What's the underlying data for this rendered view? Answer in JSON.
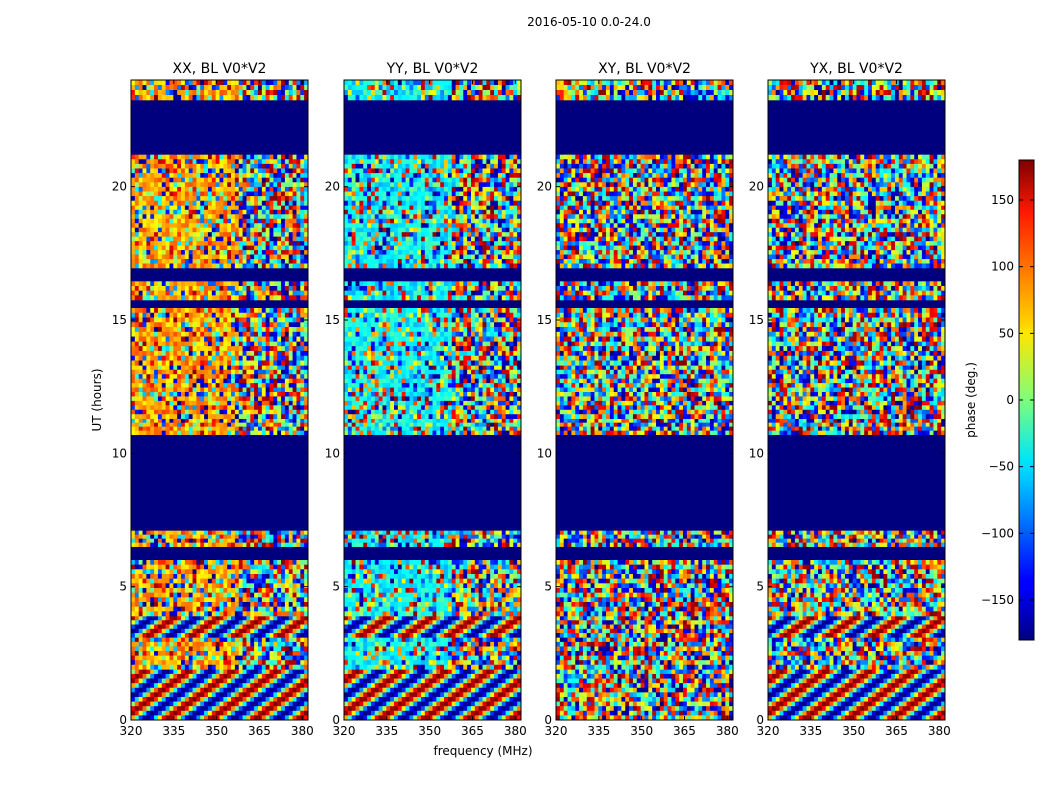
{
  "chart_data": {
    "type": "heatmap",
    "suptitle": "2016-05-10 0.0-24.0",
    "xlabel": "frequency (MHz)",
    "ylabel": "UT (hours)",
    "xlim": [
      320,
      382
    ],
    "ylim": [
      0,
      24
    ],
    "xticks": [
      320,
      335,
      350,
      365,
      380
    ],
    "yticks": [
      0,
      5,
      10,
      15,
      20
    ],
    "panels": [
      {
        "title": "XX, BL V0*V2"
      },
      {
        "title": "YY, BL V0*V2"
      },
      {
        "title": "XY, BL V0*V2"
      },
      {
        "title": "YX, BL V0*V2"
      }
    ],
    "colorbar": {
      "label": "phase (deg.)",
      "range": [
        -180,
        180
      ],
      "ticks": [
        -150,
        -100,
        -50,
        0,
        50,
        100,
        150
      ],
      "tick_labels": [
        "−150",
        "−100",
        "−50",
        "0",
        "50",
        "100",
        "150"
      ],
      "colormap": "jet"
    },
    "flagged_intervals_ut": [
      [
        6.0,
        6.5
      ],
      [
        7.1,
        7.25
      ],
      [
        7.35,
        8.05
      ],
      [
        8.15,
        8.7
      ],
      [
        8.8,
        10.4
      ],
      [
        10.5,
        10.7
      ],
      [
        15.45,
        15.75
      ],
      [
        16.45,
        16.95
      ],
      [
        21.2,
        22.1
      ],
      [
        22.2,
        22.5
      ],
      [
        22.65,
        23.25
      ]
    ],
    "band_intervals_ut": [
      [
        0.0,
        1.9
      ],
      [
        1.9,
        3.1
      ],
      [
        3.1,
        3.9
      ],
      [
        3.9,
        6.0
      ],
      [
        6.5,
        7.1
      ],
      [
        10.7,
        11.3
      ],
      [
        11.3,
        13.3
      ],
      [
        13.3,
        14.2
      ],
      [
        14.2,
        15.45
      ],
      [
        15.75,
        16.45
      ],
      [
        16.95,
        19.3
      ],
      [
        19.3,
        21.2
      ],
      [
        23.25,
        24.0
      ]
    ]
  }
}
